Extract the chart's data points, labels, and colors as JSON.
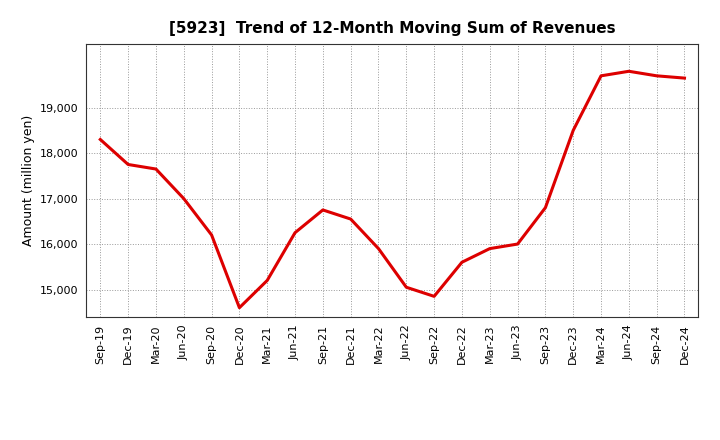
{
  "title": "[5923]  Trend of 12-Month Moving Sum of Revenues",
  "ylabel": "Amount (million yen)",
  "line_color": "#dd0000",
  "background_color": "#ffffff",
  "plot_bg_color": "#ffffff",
  "grid_color": "#999999",
  "x_labels": [
    "Sep-19",
    "Dec-19",
    "Mar-20",
    "Jun-20",
    "Sep-20",
    "Dec-20",
    "Mar-21",
    "Jun-21",
    "Sep-21",
    "Dec-21",
    "Mar-22",
    "Jun-22",
    "Sep-22",
    "Dec-22",
    "Mar-23",
    "Jun-23",
    "Sep-23",
    "Dec-23",
    "Mar-24",
    "Jun-24",
    "Sep-24",
    "Dec-24"
  ],
  "y_values": [
    18300,
    17750,
    17650,
    17000,
    16200,
    14600,
    15200,
    16250,
    16750,
    16550,
    15900,
    15050,
    14850,
    15600,
    15900,
    16000,
    16800,
    18500,
    19700,
    19800,
    19700,
    19650
  ],
  "ylim": [
    14400,
    20400
  ],
  "yticks": [
    15000,
    16000,
    17000,
    18000,
    19000
  ],
  "line_width": 2.2,
  "figsize": [
    7.2,
    4.4
  ],
  "dpi": 100,
  "title_fontsize": 11,
  "ylabel_fontsize": 9,
  "tick_fontsize": 8
}
